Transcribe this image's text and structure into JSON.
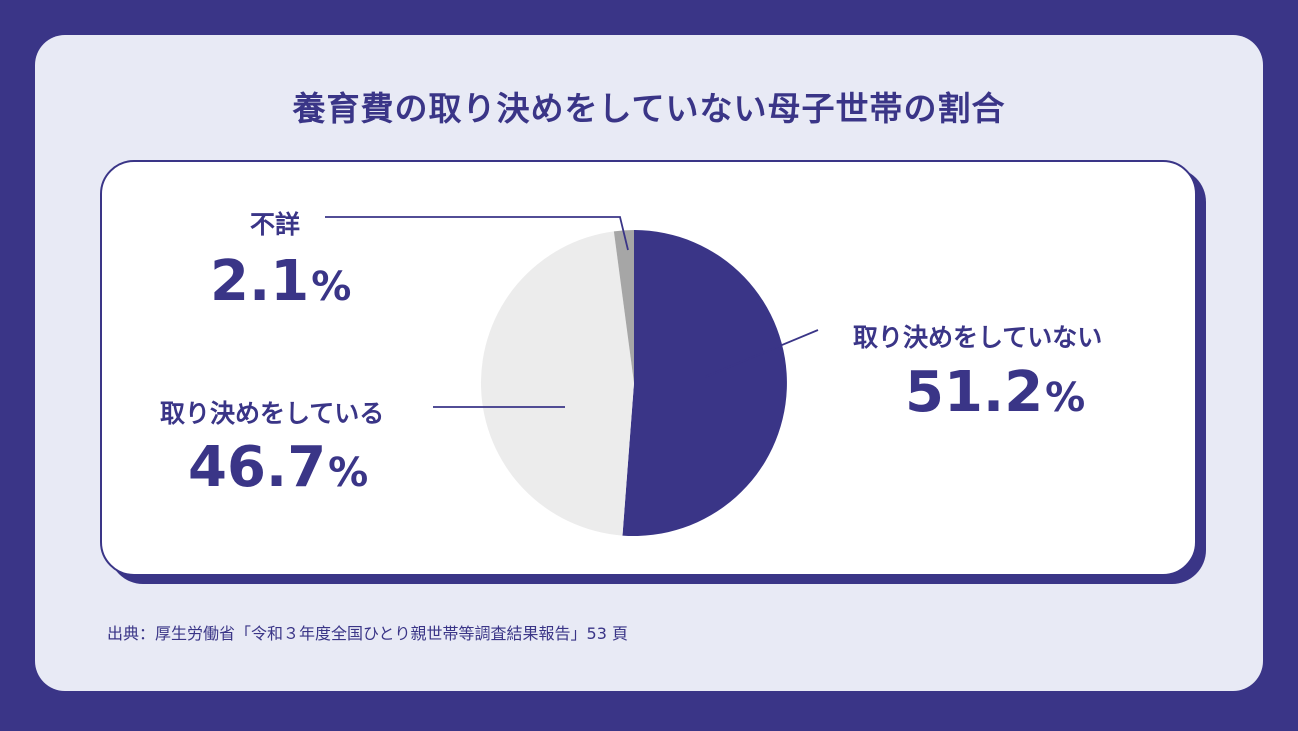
{
  "title": "養育費の取り決めをしていない母子世帯の割合",
  "source": "出典：厚生労働省「令和３年度全国ひとり親世帯等調査結果報告」53 頁",
  "colors": {
    "background": "#3a3587",
    "panel": "#e8eaf5",
    "accent": "#3a3587",
    "slice_not_arranged": "#3a3587",
    "slice_arranged": "#ececec",
    "slice_unknown": "#a6a6a6"
  },
  "chart_data": {
    "type": "pie",
    "title": "養育費の取り決めをしていない母子世帯の割合",
    "unit": "%",
    "slices": [
      {
        "label": "取り決めをしていない",
        "value": 51.2,
        "value_text": "51.2",
        "color": "#3a3587"
      },
      {
        "label": "取り決めをしている",
        "value": 46.7,
        "value_text": "46.7",
        "color": "#ececec"
      },
      {
        "label": "不詳",
        "value": 2.1,
        "value_text": "2.1",
        "color": "#a6a6a6"
      }
    ]
  }
}
